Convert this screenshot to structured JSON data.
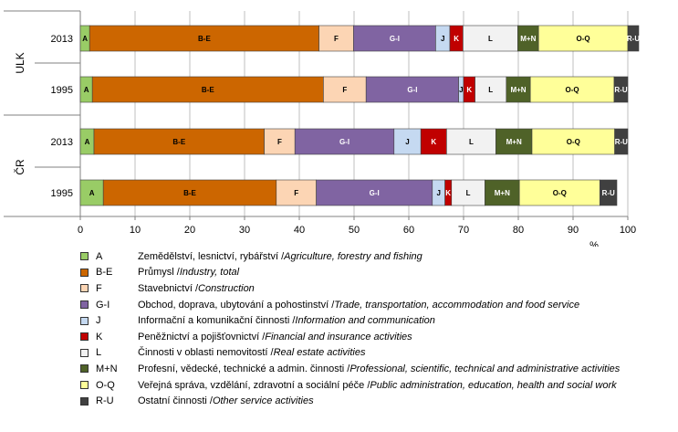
{
  "chart_data": {
    "type": "bar",
    "orientation": "horizontal",
    "stacked": true,
    "xlabel": "%",
    "xlim": [
      0,
      100
    ],
    "xticks": [
      0,
      10,
      20,
      30,
      40,
      50,
      60,
      70,
      80,
      90,
      100
    ],
    "groups": [
      {
        "label": "ULK",
        "rows": [
          "2013",
          "1995"
        ]
      },
      {
        "label": "ČR",
        "rows": [
          "2013",
          "1995"
        ]
      }
    ],
    "rows": [
      {
        "group": "ULK",
        "year": "2013",
        "values": [
          1.7,
          41.9,
          6.3,
          15.0,
          2.6,
          2.4,
          10.0,
          3.8,
          16.3,
          2.0
        ]
      },
      {
        "group": "ULK",
        "year": "1995",
        "values": [
          2.2,
          42.2,
          7.8,
          16.9,
          0.9,
          2.1,
          5.7,
          4.4,
          15.3,
          2.5
        ]
      },
      {
        "group": "ČR",
        "year": "2013",
        "values": [
          2.5,
          31.1,
          5.6,
          18.1,
          4.9,
          4.7,
          9.0,
          6.6,
          15.1,
          2.4
        ]
      },
      {
        "group": "ČR",
        "year": "1995",
        "values": [
          4.2,
          31.6,
          7.3,
          21.2,
          2.3,
          1.2,
          6.1,
          6.3,
          14.7,
          3.1
        ]
      }
    ],
    "segment_labels": [
      "A",
      "B-E",
      "F",
      "G-I",
      "J",
      "K",
      "L",
      "M+N",
      "O-Q",
      "R-U"
    ],
    "series_colors": [
      "#99cc66",
      "#cc6600",
      "#fcd5b4",
      "#8064a2",
      "#c5d9f1",
      "#c00000",
      "#f2f2f2",
      "#4f6228",
      "#ffff99",
      "#404040"
    ],
    "label_colors": [
      "#000000",
      "#000000",
      "#000000",
      "#ffffff",
      "#000000",
      "#ffffff",
      "#000000",
      "#ffffff",
      "#000000",
      "#ffffff"
    ]
  },
  "legend": [
    {
      "code": "A",
      "cz": "Zemědělství, lesnictví, rybářství / ",
      "en": "Agriculture, forestry and fishing"
    },
    {
      "code": "B-E",
      "cz": "Průmysl / ",
      "en": "Industry, total"
    },
    {
      "code": "F",
      "cz": "Stavebnictví / ",
      "en": "Construction"
    },
    {
      "code": "G-I",
      "cz": "Obchod, doprava, ubytování a pohostinství / ",
      "en": "Trade, transportation, accommodation and food service"
    },
    {
      "code": "J",
      "cz": "Informační a komunikační činnosti /",
      "en": "Information and communication"
    },
    {
      "code": "K",
      "cz": "Peněžnictví a pojišťovnictví /",
      "en": "Financial and insurance activities"
    },
    {
      "code": "L",
      "cz": "Činnosti v oblasti nemovitostí /",
      "en": "Real estate activities"
    },
    {
      "code": "M+N",
      "cz": "Profesní, vědecké, technické a admin. činnosti /",
      "en": "Professional, scientific, technical and administrative activities"
    },
    {
      "code": "O-Q",
      "cz": "Veřejná správa, vzdělání, zdravotní a sociální péče /",
      "en": "Public administration, education, health and social work"
    },
    {
      "code": "R-U",
      "cz": "Ostatní činnosti /",
      "en": "Other service activities"
    }
  ]
}
